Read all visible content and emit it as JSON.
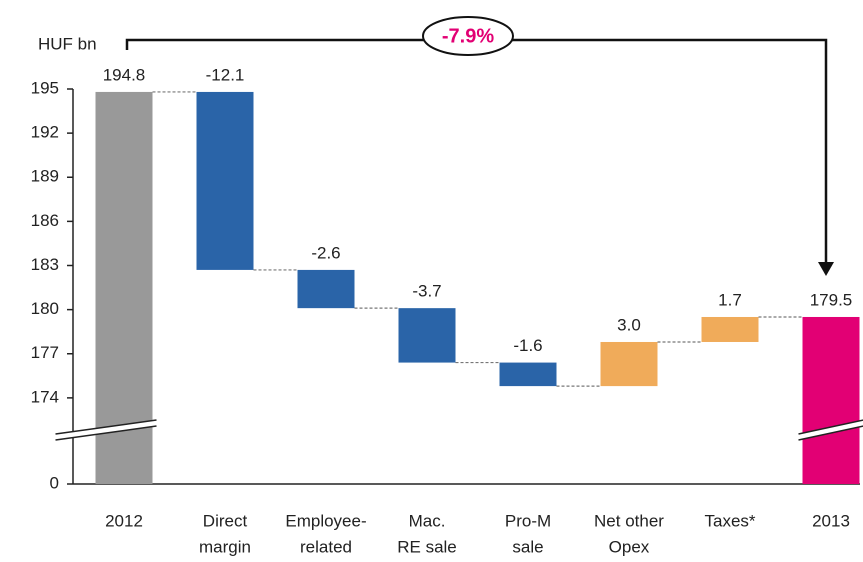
{
  "chart_data": {
    "type": "waterfall",
    "y_unit_label": "HUF bn",
    "annotation": "-7.9%",
    "categories": [
      [
        "2012"
      ],
      [
        "Direct",
        "margin"
      ],
      [
        "Employee-",
        "related"
      ],
      [
        "Mac.",
        "RE sale"
      ],
      [
        "Pro-M",
        "sale"
      ],
      [
        "Net other",
        "Opex"
      ],
      [
        "Taxes*"
      ],
      [
        "2013"
      ]
    ],
    "values": [
      194.8,
      -12.1,
      -2.6,
      -3.7,
      -1.6,
      3.0,
      1.7,
      179.5
    ],
    "value_labels": [
      "194.8",
      "-12.1",
      "-2.6",
      "-3.7",
      "-1.6",
      "3.0",
      "1.7",
      "179.5"
    ],
    "totals": [
      true,
      false,
      false,
      false,
      false,
      false,
      false,
      true
    ],
    "colors": [
      "#999999",
      "#2a64a8",
      "#2a64a8",
      "#2a64a8",
      "#2a64a8",
      "#f0ab5a",
      "#f0ab5a",
      "#e20074"
    ],
    "ylim": [
      0,
      195
    ],
    "axis_break": [
      0,
      171
    ],
    "yticks": [
      0,
      174,
      177,
      180,
      183,
      186,
      189,
      192,
      195
    ]
  }
}
